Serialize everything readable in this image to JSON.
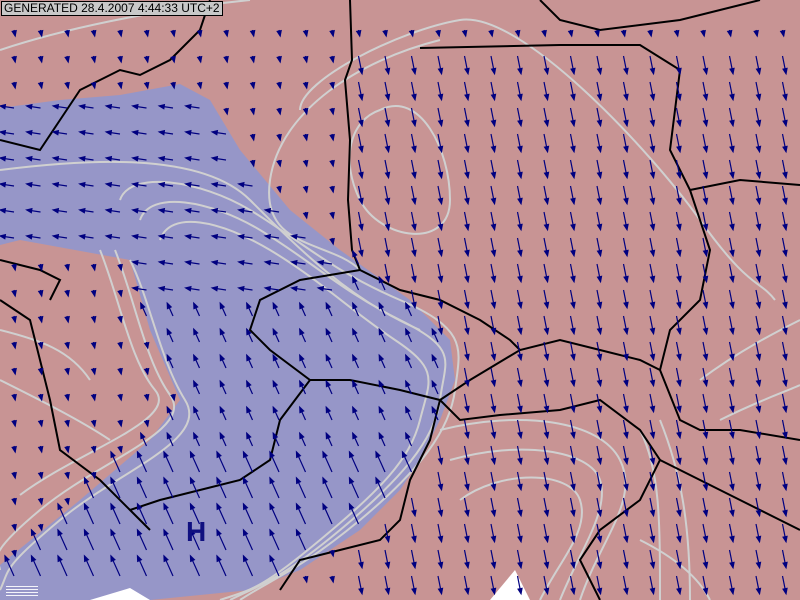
{
  "header": {
    "generated_stamp": "GENERATED 28.4.2007 4:44:33 UTC+2"
  },
  "map": {
    "pressure_labels": [
      {
        "text": "H",
        "type": "high-pressure-center"
      }
    ],
    "colors": {
      "land_warm": "#c89494",
      "region_cool": "#9696c8",
      "wind_arrows": "#000080",
      "isolines": "#d0d0d0",
      "borders": "#000000",
      "pressure_label": "#101080"
    },
    "layers": [
      "wind-vectors",
      "isobars",
      "country-borders",
      "high-pressure-center"
    ]
  }
}
